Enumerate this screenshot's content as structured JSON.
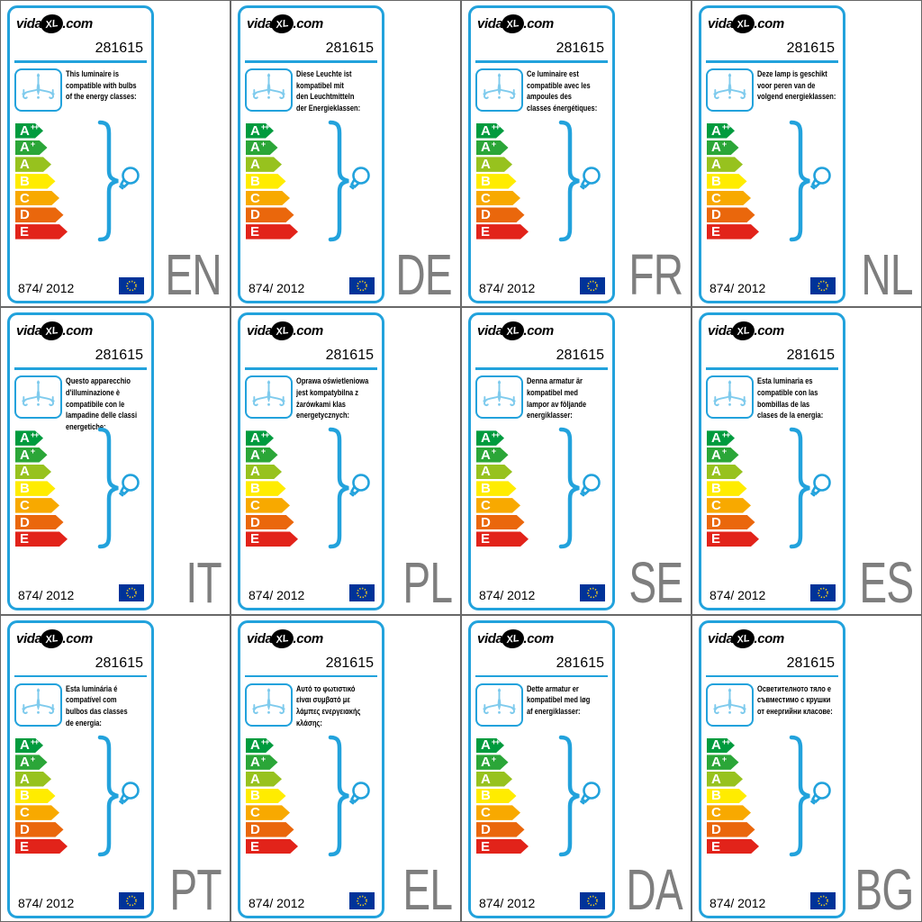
{
  "shared": {
    "brand": {
      "prefix": "vida",
      "mark": "XL",
      "suffix": ".com"
    },
    "product_number": "281615",
    "regulation": "874/ 2012",
    "accent_color": "#22A2DC",
    "icon_blue": "#7FCBED",
    "grid_line_color": "#686868",
    "lang_code_color": "#7E7E7E",
    "icons": {
      "chandelier": "chandelier-icon",
      "bulb": "bulb-icon",
      "eu_flag": "eu-flag-icon",
      "brace": "curly-brace"
    }
  },
  "energy_classes": [
    {
      "label": "A",
      "sup": "++",
      "color": "#009B3E",
      "width": 31
    },
    {
      "label": "A",
      "sup": "+",
      "color": "#2BA638",
      "width": 35.5
    },
    {
      "label": "A",
      "sup": "",
      "color": "#97C21E",
      "width": 40
    },
    {
      "label": "B",
      "sup": "",
      "color": "#FFEC00",
      "width": 44.5
    },
    {
      "label": "C",
      "sup": "",
      "color": "#F8A900",
      "width": 49
    },
    {
      "label": "D",
      "sup": "",
      "color": "#EA670C",
      "width": 53.5
    },
    {
      "label": "E",
      "sup": "",
      "color": "#E2231A",
      "width": 58
    }
  ],
  "cards": [
    {
      "lang": "EN",
      "description_lines": [
        "This luminaire is",
        "compatible with bulbs",
        "of the energy classes:"
      ]
    },
    {
      "lang": "DE",
      "description_lines": [
        "Diese Leuchte ist",
        "kompatibel mit",
        "den Leuchtmitteln",
        "der Energieklassen:"
      ]
    },
    {
      "lang": "FR",
      "description_lines": [
        "Ce luminaire est",
        "compatible avec les",
        "ampoules des",
        "classes énergétiques:"
      ]
    },
    {
      "lang": "NL",
      "description_lines": [
        "Deze lamp is geschikt",
        "voor peren van de",
        "volgend energieklassen:"
      ]
    },
    {
      "lang": "IT",
      "description_lines": [
        "Questo apparecchio",
        "d'illuminazione è",
        "compatibile con le",
        "lampadine delle classi",
        "energetiche:"
      ]
    },
    {
      "lang": "PL",
      "description_lines": [
        "Oprawa oświetleniowa",
        "jest kompatybilna z",
        "żarówkami klas",
        "energetycznych:"
      ]
    },
    {
      "lang": "SE",
      "description_lines": [
        "Denna armatur är",
        "kompatibel med",
        "lampor av följande",
        "energiklasser:"
      ]
    },
    {
      "lang": "ES",
      "description_lines": [
        "Esta luminaria es",
        "compatible con las",
        "bombillas de las",
        "clases de la energia:"
      ]
    },
    {
      "lang": "PT",
      "description_lines": [
        "Esta luminária é",
        "compatível com",
        "bulbos das classes",
        "de energia:"
      ]
    },
    {
      "lang": "EL",
      "description_lines": [
        "Αυτό το φωτιστικό",
        "είναι συμβατό με",
        "λάμπες ενεργειακής",
        "κλάσης:"
      ]
    },
    {
      "lang": "DA",
      "description_lines": [
        "Dette armatur er",
        "kompatibel med løg",
        "af energiklasser:"
      ]
    },
    {
      "lang": "BG",
      "description_lines": [
        "Осветителното тяло е",
        "съвместимо с крушки",
        "от енергийни класове:"
      ]
    }
  ]
}
